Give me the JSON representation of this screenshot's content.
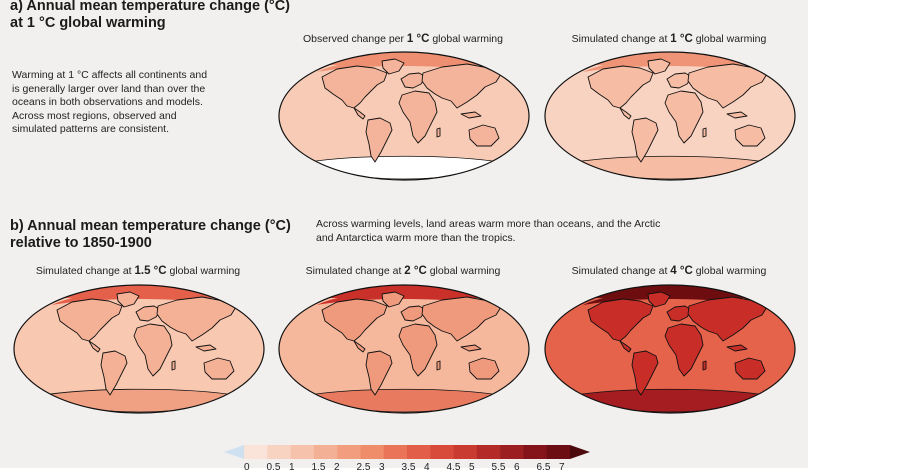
{
  "section_a": {
    "title_line1": "a) Annual mean temperature change (°C)",
    "title_line2": "at 1 °C global warming",
    "description_lines": [
      "Warming at 1 °C affects all continents and",
      "is generally larger over land than over the",
      "oceans in both observations and models.",
      "Across most regions, observed and",
      "simulated patterns are consistent."
    ],
    "maps": [
      {
        "prefix": "Observed change per ",
        "value": "1 °C",
        "suffix": " global warming",
        "base_color": "#f8cbb6",
        "land_color": "#f4b49b",
        "arctic_color": "#ee8f72",
        "antarctic_color": "#ffffff"
      },
      {
        "prefix": "Simulated change at ",
        "value": "1 °C",
        "suffix": " global warming",
        "base_color": "#f9d3c1",
        "land_color": "#f6bda4",
        "arctic_color": "#ef9477",
        "antarctic_color": "#f6bda4"
      }
    ]
  },
  "section_b": {
    "title_line1": "b) Annual mean temperature change (°C)",
    "title_line2": "relative to 1850-1900",
    "description_lines": [
      "Across warming levels, land areas warm more than oceans, and the Arctic",
      "and Antarctica warm more than the tropics."
    ],
    "maps": [
      {
        "prefix": "Simulated change at ",
        "value": "1.5 °C",
        "suffix": " global warming",
        "base_color": "#f8c8b1",
        "land_color": "#f4b195",
        "arctic_color": "#e5604a",
        "antarctic_color": "#f0a083"
      },
      {
        "prefix": "Simulated change at ",
        "value": "2 °C",
        "suffix": " global warming",
        "base_color": "#f6b89d",
        "land_color": "#ef9a7d",
        "arctic_color": "#c9302a",
        "antarctic_color": "#e77a5f"
      },
      {
        "prefix": "Simulated change at ",
        "value": "4 °C",
        "suffix": " global warming",
        "base_color": "#e5624b",
        "land_color": "#c92d28",
        "arctic_color": "#6e0d10",
        "antarctic_color": "#a51c21"
      }
    ]
  },
  "colorbar": {
    "colors": [
      "#fae4d9",
      "#f8d3c2",
      "#f6c2ab",
      "#f4b094",
      "#f29e7e",
      "#ef8c69",
      "#ea7458",
      "#e35e48",
      "#d84a3a",
      "#c93a30",
      "#b42a27",
      "#9c1e20",
      "#84141a",
      "#6b0d13"
    ],
    "under_color": "#cfe1f1",
    "over_color": "#4d0a0d",
    "tick_labels": [
      "0",
      "0.5",
      "1",
      "1.5",
      "2",
      "2.5",
      "3",
      "3.5",
      "4",
      "4.5",
      "5",
      "5.5",
      "6",
      "6.5",
      "7"
    ]
  }
}
